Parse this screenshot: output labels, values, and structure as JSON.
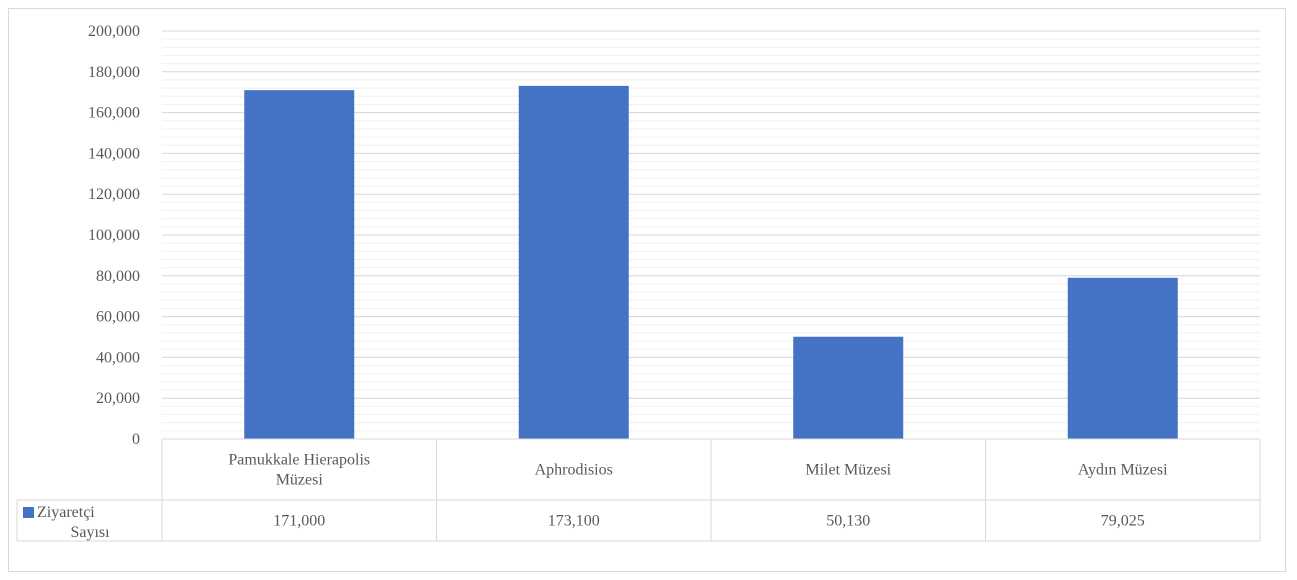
{
  "chart_data": {
    "type": "bar",
    "categories": [
      [
        "Pamukkale Hierapolis",
        "Müzesi"
      ],
      [
        "Aphrodisios"
      ],
      [
        "Milet Müzesi"
      ],
      [
        "Aydın Müzesi"
      ]
    ],
    "series": [
      {
        "name": [
          "Ziyaretçi",
          "Sayısı"
        ],
        "values": [
          171000,
          173100,
          50130,
          79025
        ],
        "value_labels": [
          "171,000",
          "173,100",
          "50,130",
          "79,025"
        ],
        "color": "#4472c4"
      }
    ],
    "ylim": [
      0,
      200000
    ],
    "y_ticks": [
      0,
      20000,
      40000,
      60000,
      80000,
      100000,
      120000,
      140000,
      160000,
      180000,
      200000
    ],
    "y_tick_labels": [
      "0",
      "20,000",
      "40,000",
      "60,000",
      "80,000",
      "100,000",
      "120,000",
      "140,000",
      "160,000",
      "180,000",
      "200,000"
    ],
    "grid": true,
    "minor_grid": true,
    "data_table": true,
    "title": "",
    "xlabel": "",
    "ylabel": ""
  },
  "colors": {
    "bar": "#4472c4",
    "major_grid": "#d9d9d9",
    "minor_grid": "#f0f0f0",
    "axis": "#d9d9d9",
    "text": "#595959"
  }
}
